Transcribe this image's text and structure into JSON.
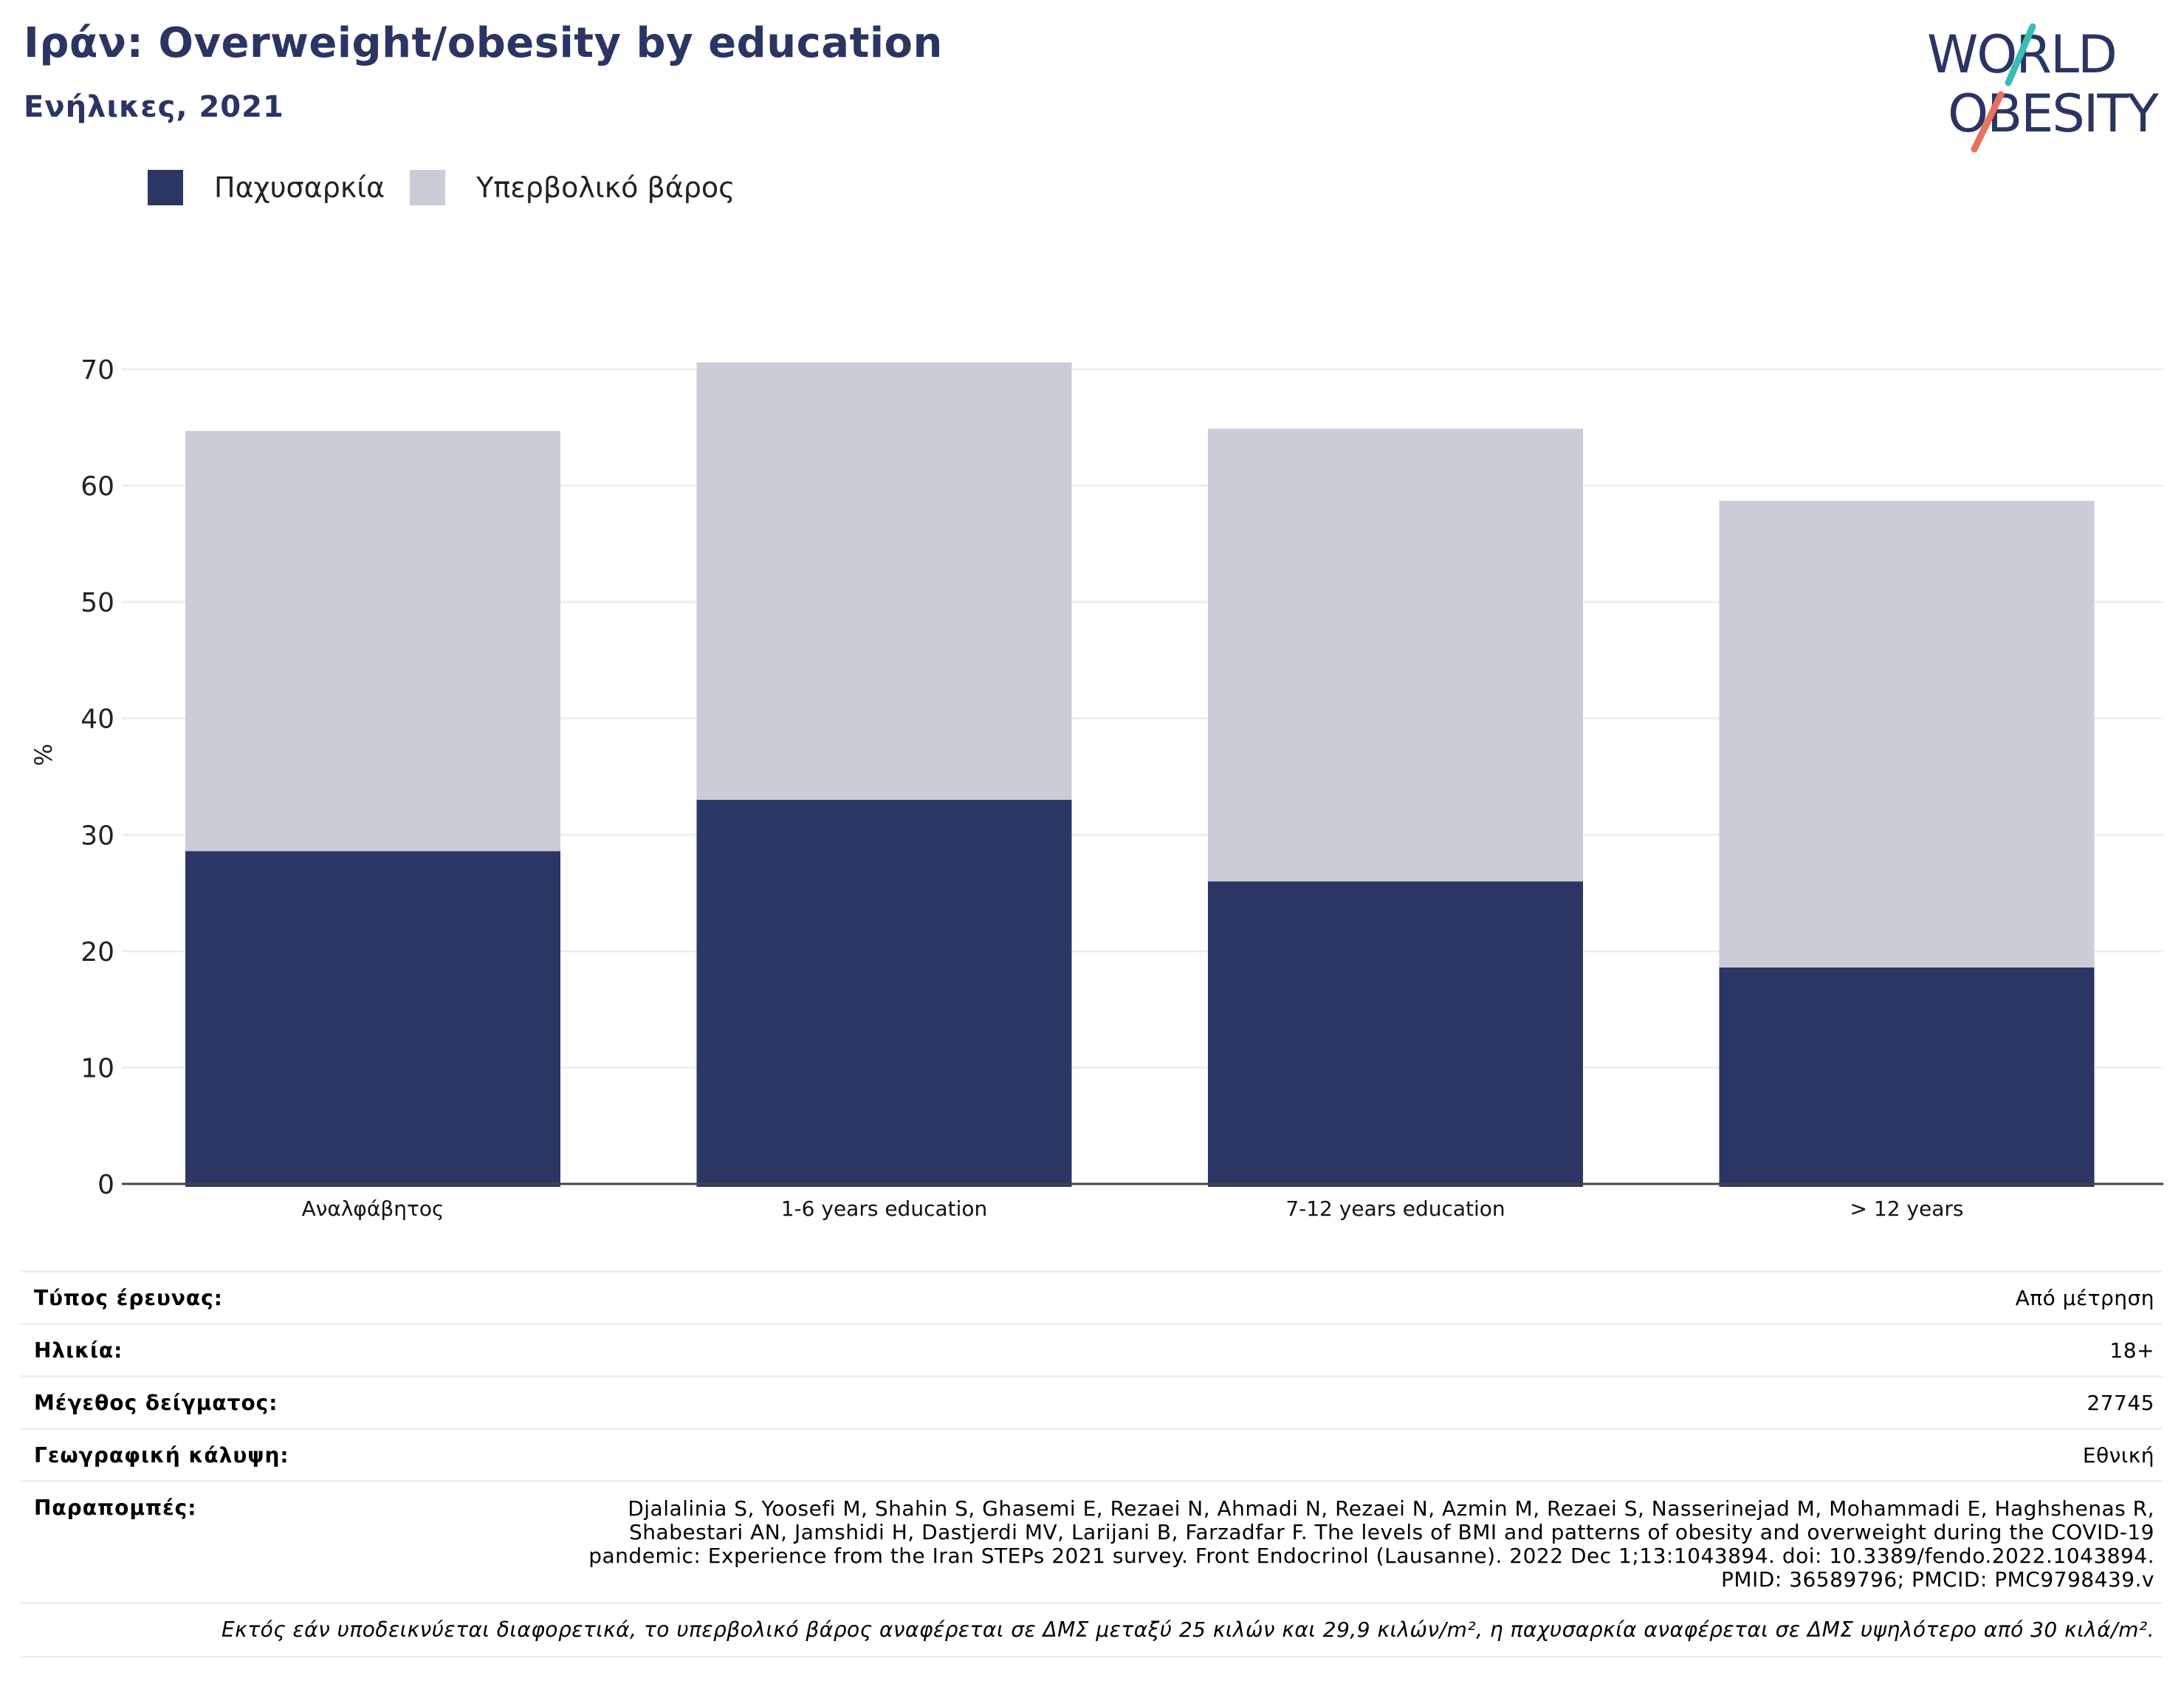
{
  "title": "Ιράν: Overweight/obesity by education",
  "subtitle": "Ενήλικες, 2021",
  "logo": {
    "line1": "WORLD",
    "line2": "OBESITY"
  },
  "colors": {
    "obesity": "#2b3664",
    "overweight": "#caccd8",
    "title": "#2a3563",
    "grid": "#eceef2"
  },
  "legend": [
    {
      "label": "Παχυσαρκία",
      "color": "#2b3664"
    },
    {
      "label": "Υπερβολικό βάρος",
      "color": "#caccd8"
    }
  ],
  "chart_data": {
    "type": "bar",
    "stacked": true,
    "categories": [
      "Αναλφάβητος",
      "1-6 years education",
      "7-12 years education",
      "> 12 years"
    ],
    "series": [
      {
        "name": "Παχυσαρκία",
        "values": [
          28.6,
          33.0,
          26.0,
          18.6
        ]
      },
      {
        "name": "Υπερβολικό βάρος",
        "values": [
          36.1,
          37.6,
          38.9,
          40.1
        ]
      }
    ],
    "ylabel": "%",
    "ylim": [
      0,
      70
    ],
    "yticks": [
      0,
      10,
      20,
      30,
      40,
      50,
      60,
      70
    ],
    "grid": true,
    "legend_position": "top-left"
  },
  "info": {
    "rows": [
      {
        "key": "Τύπος έρευνας:",
        "value": "Από μέτρηση"
      },
      {
        "key": "Ηλικία:",
        "value": "18+"
      },
      {
        "key": "Μέγεθος δείγματος:",
        "value": "27745"
      },
      {
        "key": "Γεωγραφική κάλυψη:",
        "value": "Εθνική"
      }
    ],
    "references_key": "Παραπομπές:",
    "references_value": "Djalalinia S, Yoosefi M, Shahin S, Ghasemi E, Rezaei N, Ahmadi N, Rezaei N, Azmin M, Rezaei S, Nasserinejad M, Mohammadi E, Haghshenas R, Shabestari AN, Jamshidi H, Dastjerdi MV, Larijani B, Farzadfar F. The levels of BMI and patterns of obesity and overweight during the COVID-19 pandemic: Experience from the Iran STEPs 2021 survey. Front Endocrinol (Lausanne). 2022 Dec 1;13:1043894. doi: 10.3389/fendo.2022.1043894. PMID: 36589796; PMCID: PMC9798439.v",
    "note": "Εκτός εάν υποδεικνύεται διαφορετικά, το υπερβολικό βάρος αναφέρεται σε ΔΜΣ μεταξύ 25 κιλών και 29,9 κιλών/m², η παχυσαρκία αναφέρεται σε ΔΜΣ υψηλότερο από 30 κιλά/m²."
  }
}
